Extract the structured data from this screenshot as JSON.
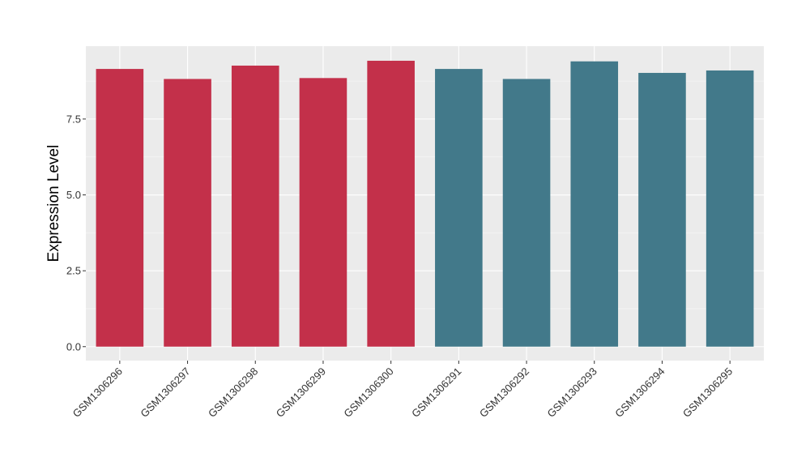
{
  "chart_data": {
    "type": "bar",
    "title": "",
    "xlabel": "",
    "ylabel": "Expression Level",
    "categories": [
      "GSM1306296",
      "GSM1306297",
      "GSM1306298",
      "GSM1306299",
      "GSM1306300",
      "GSM1306291",
      "GSM1306292",
      "GSM1306293",
      "GSM1306294",
      "GSM1306295"
    ],
    "values": [
      9.15,
      8.82,
      9.26,
      8.85,
      9.42,
      9.15,
      8.82,
      9.4,
      9.02,
      9.1
    ],
    "bar_colors": [
      "#c3304a",
      "#c3304a",
      "#c3304a",
      "#c3304a",
      "#c3304a",
      "#42798a",
      "#42798a",
      "#42798a",
      "#42798a",
      "#42798a"
    ],
    "ylim": [
      -0.46,
      9.9
    ],
    "yticks": [
      0.0,
      2.5,
      5.0,
      7.5
    ],
    "ytick_labels": [
      "0.0",
      "2.5",
      "5.0",
      "7.5"
    ],
    "grid": true,
    "legend": "none",
    "colors": {
      "panel": "#ebebeb",
      "grid_major": "#ffffff",
      "grid_minor": "#f5f5f5",
      "tick": "#333333"
    }
  }
}
